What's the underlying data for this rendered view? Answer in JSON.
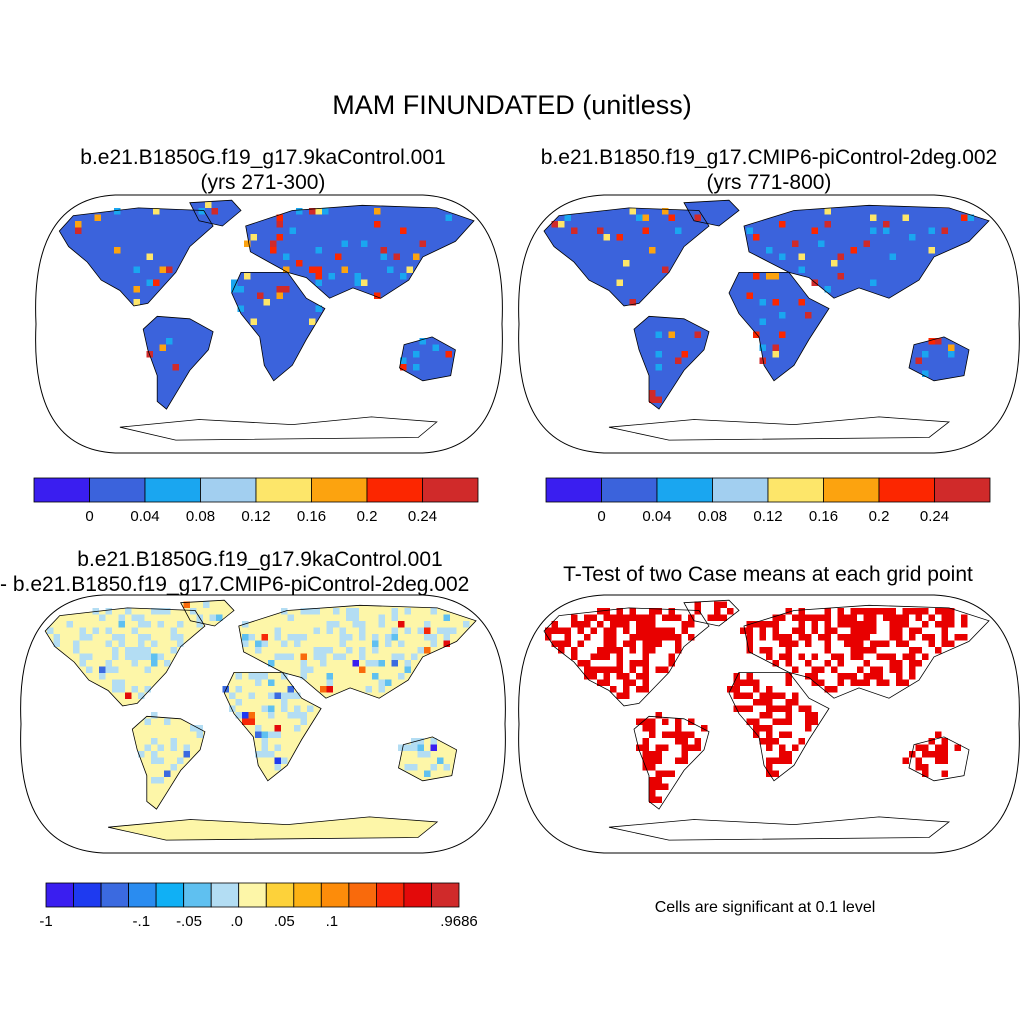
{
  "figure": {
    "title": "MAM FINUNDATED (unitless)"
  },
  "panels": [
    {
      "id": "case1",
      "title_line1": "b.e21.B1850G.f19_g17.9kaControl.001",
      "title_line2": "(yrs 271-300)",
      "colorbar": {
        "colors": [
          "#3a1ef0",
          "#3b63dc",
          "#1aa6f0",
          "#a2cff0",
          "#fde66a",
          "#fca30f",
          "#fc2600",
          "#d02a2a"
        ],
        "labels": [
          "0",
          "0.04",
          "0.08",
          "0.12",
          "0.16",
          "0.2",
          "0.24"
        ]
      }
    },
    {
      "id": "case2",
      "title_line1": "b.e21.B1850.f19_g17.CMIP6-piControl-2deg.002",
      "title_line2": "(yrs 771-800)",
      "colorbar": {
        "colors": [
          "#3a1ef0",
          "#3b63dc",
          "#1aa6f0",
          "#a2cff0",
          "#fde66a",
          "#fca30f",
          "#fc2600",
          "#d02a2a"
        ],
        "labels": [
          "0",
          "0.04",
          "0.08",
          "0.12",
          "0.16",
          "0.2",
          "0.24"
        ]
      }
    },
    {
      "id": "difference",
      "title_line1": "b.e21.B1850G.f19_g17.9kaControl.001",
      "title_line2": "- b.e21.B1850.f19_g17.CMIP6-piControl-2deg.002",
      "colorbar": {
        "colors": [
          "#3a1ef0",
          "#1e3af0",
          "#3b6ae0",
          "#2a8cf0",
          "#10b0f5",
          "#5fc0f0",
          "#b3ddf3",
          "#fdf6a8",
          "#fdd23a",
          "#fdb214",
          "#fd8c0a",
          "#f96a0c",
          "#f72808",
          "#e30a0a",
          "#d02a2a"
        ],
        "labels": [
          "-1",
          "-.1",
          "-.05",
          ".0",
          ".05",
          ".1",
          ".9686"
        ]
      }
    },
    {
      "id": "ttest",
      "title_line1": "T-Test of two Case means at each grid point",
      "note": "Cells are significant at 0.1 level",
      "significant_color": "#e80000"
    }
  ],
  "map_colors": {
    "case_background": "#3b63dc",
    "difference_background": "#fdf6a8",
    "outline": "#000000"
  }
}
